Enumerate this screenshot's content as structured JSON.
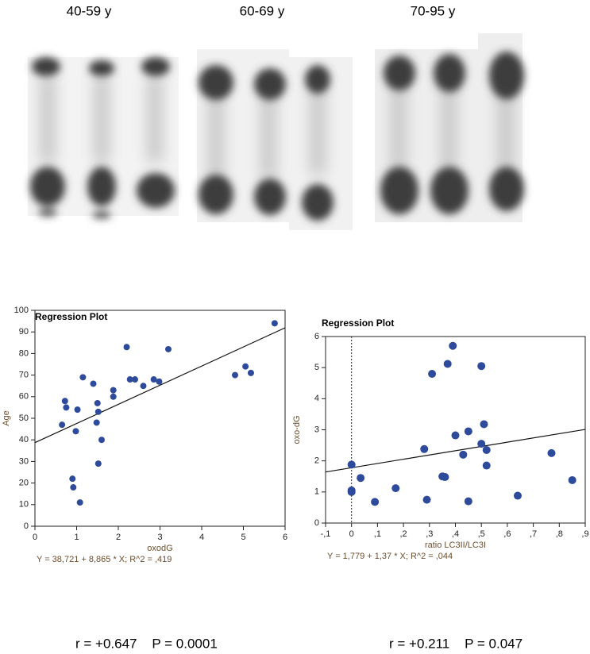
{
  "blot_labels": [
    "40-59 y",
    "60-69 y",
    "70-95 y"
  ],
  "stats": [
    "r = +0.647    P = 0.0001",
    "r = +0.211    P = 0.047"
  ],
  "chart_data": [
    {
      "type": "scatter",
      "title": "Regression Plot",
      "x_label": "oxodG",
      "y_label": "Age",
      "equation": "Y = 38,721 + 8,865 * X; R^2 = ,419",
      "regression": {
        "intercept": 38.721,
        "slope": 8.865
      },
      "color": "#2e4a9a",
      "x": [
        0.65,
        0.72,
        0.75,
        0.9,
        0.92,
        0.98,
        1.02,
        1.08,
        1.15,
        1.4,
        1.48,
        1.5,
        1.52,
        1.52,
        1.6,
        1.88,
        1.88,
        2.2,
        2.28,
        2.4,
        2.6,
        2.85,
        2.98,
        3.2,
        4.8,
        5.05,
        5.18,
        5.75
      ],
      "values": [
        47,
        58,
        55,
        22,
        18,
        44,
        54,
        11,
        69,
        66,
        48,
        57,
        53,
        29,
        40,
        63,
        60,
        83,
        68,
        68,
        65,
        68,
        67,
        82,
        70,
        74,
        71,
        94
      ],
      "xlim": [
        0,
        6
      ],
      "xticks": [
        0,
        1,
        2,
        3,
        4,
        5,
        6
      ],
      "ylim": [
        0,
        100
      ],
      "yticks": [
        0,
        10,
        20,
        30,
        40,
        50,
        60,
        70,
        80,
        90,
        100
      ]
    },
    {
      "type": "scatter",
      "title": "Regression Plot",
      "x_label": "ratio LC3II/LC3I",
      "y_label": "oxo-dG",
      "equation": "Y = 1,779 + 1,37 * X; R^2 = ,044",
      "regression": {
        "intercept": 1.779,
        "slope": 1.37
      },
      "zero_line": 0,
      "color": "#2e4a9a",
      "x": [
        0,
        0,
        0,
        0.035,
        0.09,
        0.17,
        0.28,
        0.29,
        0.31,
        0.35,
        0.36,
        0.37,
        0.39,
        0.4,
        0.43,
        0.45,
        0.45,
        0.5,
        0.5,
        0.51,
        0.52,
        0.52,
        0.64,
        0.77,
        0.85
      ],
      "values": [
        1.88,
        1.05,
        1.0,
        1.45,
        0.68,
        1.12,
        2.38,
        0.75,
        4.8,
        1.5,
        1.48,
        5.12,
        5.7,
        2.82,
        2.2,
        2.95,
        0.7,
        5.05,
        2.55,
        3.18,
        2.35,
        1.85,
        0.88,
        2.25,
        1.38
      ],
      "xlim": [
        -0.1,
        0.9
      ],
      "xticks": [
        {
          "value": -0.1,
          "label": "-,1"
        },
        0,
        {
          "value": 0.1,
          "label": ",1"
        },
        {
          "value": 0.2,
          "label": ",2"
        },
        {
          "value": 0.3,
          "label": ",3"
        },
        {
          "value": 0.4,
          "label": ",4"
        },
        {
          "value": 0.5,
          "label": ",5"
        },
        {
          "value": 0.6,
          "label": ",6"
        },
        {
          "value": 0.7,
          "label": ",7"
        },
        {
          "value": 0.8,
          "label": ",8"
        },
        {
          "value": 0.9,
          "label": ",9"
        }
      ],
      "ylim": [
        0,
        6
      ],
      "yticks": [
        0,
        1,
        2,
        3,
        4,
        5,
        6
      ]
    }
  ]
}
